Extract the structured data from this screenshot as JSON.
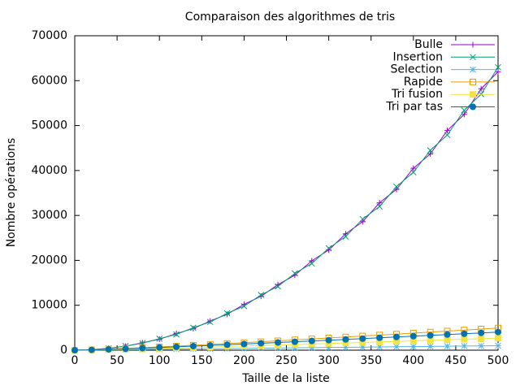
{
  "chart_data": {
    "type": "line",
    "title": "Comparaison des algorithmes de tris",
    "x_label": "Taille de la liste",
    "y_label": "Nombre opérations",
    "x": [
      0,
      20,
      40,
      60,
      80,
      100,
      120,
      140,
      160,
      180,
      200,
      220,
      240,
      260,
      280,
      300,
      320,
      340,
      360,
      380,
      400,
      420,
      440,
      460,
      480,
      500
    ],
    "xlim": [
      0,
      500
    ],
    "xticks": [
      0,
      50,
      100,
      150,
      200,
      250,
      300,
      350,
      400,
      450,
      500
    ],
    "ylim": [
      0,
      70000
    ],
    "yticks": [
      0,
      10000,
      20000,
      30000,
      40000,
      50000,
      60000,
      70000
    ],
    "legend": "top-right",
    "series": [
      {
        "name": "Bulle",
        "color": "#9400d3",
        "marker": "plus",
        "values": [
          0,
          110,
          420,
          880,
          1650,
          2450,
          3700,
          4800,
          6500,
          8000,
          10200,
          12000,
          14600,
          16700,
          19900,
          22300,
          25900,
          28600,
          32800,
          35800,
          40500,
          43700,
          48900,
          52500,
          58200,
          62000
        ]
      },
      {
        "name": "Insertion",
        "color": "#009e73",
        "marker": "cross",
        "values": [
          0,
          95,
          390,
          920,
          1560,
          2550,
          3520,
          5000,
          6300,
          8200,
          9800,
          12300,
          14200,
          17100,
          19300,
          22700,
          25300,
          29200,
          32000,
          36400,
          39600,
          44500,
          47900,
          53400,
          57000,
          63000
        ]
      },
      {
        "name": "Selection",
        "color": "#56b4e9",
        "marker": "star",
        "values": [
          0,
          40,
          80,
          120,
          160,
          200,
          240,
          280,
          320,
          360,
          400,
          440,
          480,
          520,
          560,
          600,
          640,
          680,
          720,
          760,
          800,
          840,
          880,
          920,
          960,
          1000
        ]
      },
      {
        "name": "Rapide",
        "color": "#e69f00",
        "marker": "square",
        "values": [
          0,
          95,
          234,
          389,
          557,
          730,
          912,
          1098,
          1288,
          1484,
          1682,
          1883,
          2088,
          2295,
          2505,
          2716,
          2929,
          3146,
          3364,
          3583,
          3804,
          4027,
          4252,
          4477,
          4704,
          4931
        ]
      },
      {
        "name": "Tri fusion",
        "color": "#f0e442",
        "marker": "filled-square",
        "values": [
          0,
          52,
          128,
          212,
          304,
          398,
          497,
          599,
          703,
          809,
          917,
          1027,
          1139,
          1252,
          1366,
          1481,
          1598,
          1716,
          1835,
          1954,
          2075,
          2197,
          2319,
          2442,
          2566,
          2690
        ]
      },
      {
        "name": "Tri par tas",
        "color": "#0072b2",
        "marker": "filled-circle",
        "values": [
          0,
          77,
          192,
          319,
          455,
          598,
          746,
          898,
          1054,
          1214,
          1376,
          1541,
          1708,
          1877,
          2049,
          2222,
          2397,
          2574,
          2752,
          2931,
          3112,
          3295,
          3478,
          3663,
          3848,
          4035
        ]
      }
    ]
  }
}
